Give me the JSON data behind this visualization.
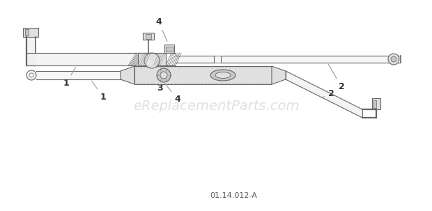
{
  "bg_color": "#ffffff",
  "watermark_text": "eReplacementParts.com",
  "watermark_color": "#cccccc",
  "watermark_fontsize": 14,
  "diagram_label": "01.14.012-A",
  "label_color": "#555555",
  "label_fontsize": 7,
  "line_color": "#666666",
  "line_color_light": "#999999",
  "fill_light": "#f0f0f0",
  "fill_mid": "#e0e0e0",
  "fill_dark": "#c8c8c8"
}
